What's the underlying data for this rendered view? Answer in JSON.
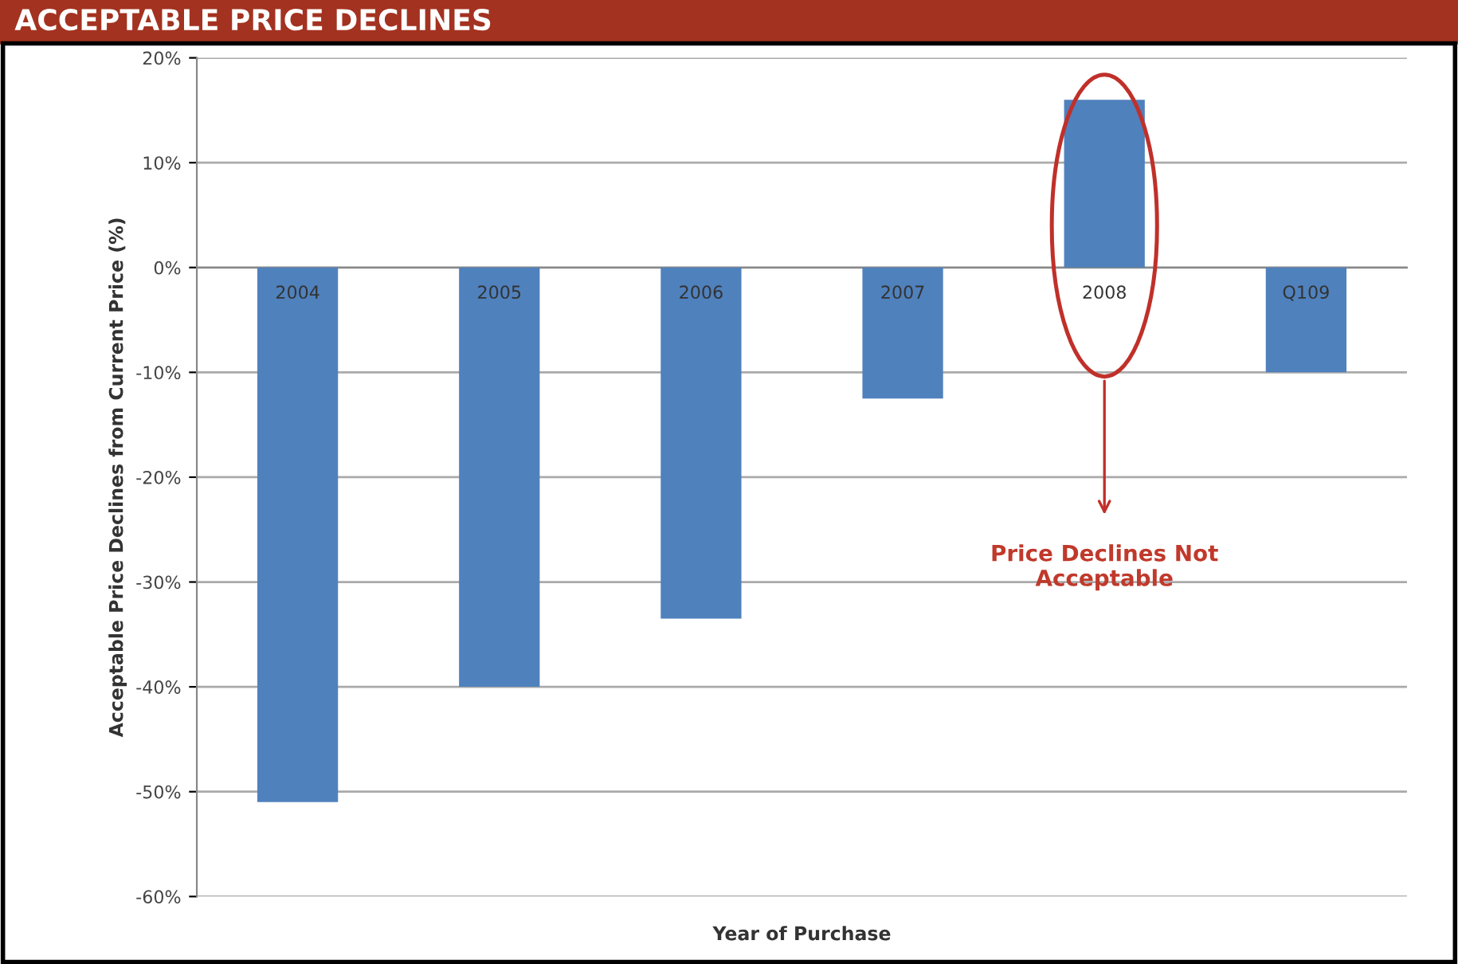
{
  "chart_data": {
    "type": "bar",
    "title": "ACCEPTABLE PRICE DECLINES",
    "xlabel": "Year of Purchase",
    "ylabel": "Acceptable Price Declines from Current Price (%)",
    "categories": [
      "2004",
      "2005",
      "2006",
      "2007",
      "2008",
      "Q109"
    ],
    "series": [
      {
        "color": "#4f81bd",
        "values": [
          -51,
          -40,
          -33.5,
          -12.5,
          16,
          -10
        ]
      }
    ],
    "ylim": [
      -60,
      20
    ],
    "yticks": [
      {
        "value": 20,
        "label": "20%"
      },
      {
        "value": 10,
        "label": "10%"
      },
      {
        "value": 0,
        "label": "0%"
      },
      {
        "value": -10,
        "label": "-10%"
      },
      {
        "value": -20,
        "label": "-20%"
      },
      {
        "value": -30,
        "label": "-30%"
      },
      {
        "value": -40,
        "label": "-40%"
      },
      {
        "value": -50,
        "label": "-50%"
      },
      {
        "value": -60,
        "label": "-60%"
      }
    ],
    "grid": "y",
    "annotations": [
      "Price Declines Not\nAcceptable"
    ]
  }
}
